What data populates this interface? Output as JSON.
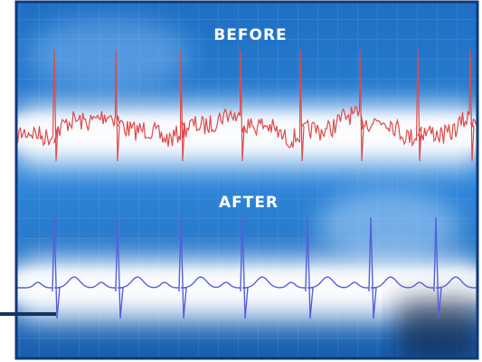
{
  "labels": {
    "before": "BEFORE",
    "after": "AFTER"
  }
}
